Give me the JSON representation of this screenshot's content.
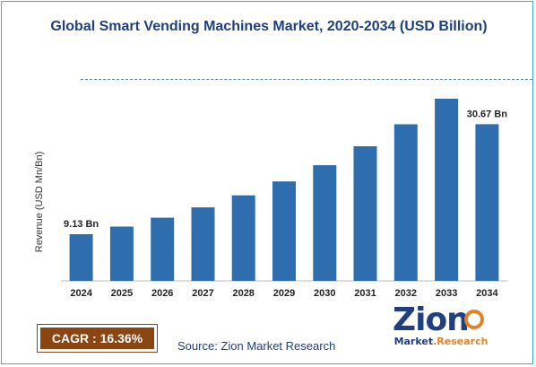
{
  "chart_data": {
    "type": "bar",
    "title": "Global Smart Vending Machines Market, 2020-2034 (USD Billion)",
    "ylabel": "Revenue (USD Mn/Bn)",
    "xlabel": "",
    "categories": [
      "2024",
      "2025",
      "2026",
      "2027",
      "2028",
      "2029",
      "2030",
      "2031",
      "2032",
      "2033",
      "2034"
    ],
    "values": [
      9.13,
      10.62,
      12.36,
      14.38,
      16.73,
      19.46,
      22.64,
      26.34,
      30.64,
      35.65,
      30.67
    ],
    "data_labels": [
      {
        "index": 0,
        "text": "9.13 Bn"
      },
      {
        "index": 10,
        "text": "30.67 Bn"
      }
    ],
    "bar_color": "#2e6dae",
    "grid": false,
    "legend": "none"
  },
  "cagr": {
    "text": "CAGR : 16.36%"
  },
  "source": {
    "text": "Source: Zion Market Research"
  },
  "logo": {
    "word": "Zion",
    "sub_left": "Market",
    "sub_right": ".Research"
  },
  "colors": {
    "title": "#1f3f80",
    "bar": "#2e6dae",
    "cagr_bg": "#8b4513",
    "logo_accent": "#e0822b",
    "frame": "#3bb0c9"
  }
}
